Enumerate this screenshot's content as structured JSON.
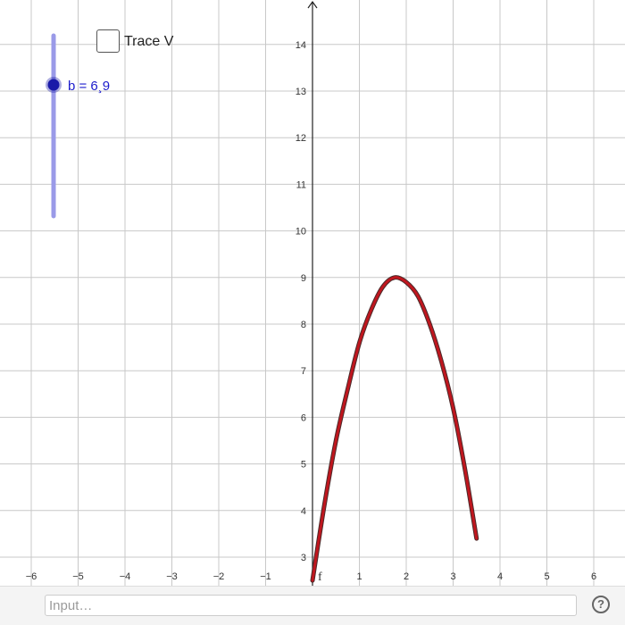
{
  "slider": {
    "label": "b = 6¸9",
    "value": 6.9,
    "track_color": "#9a9ae8",
    "knob_color": "#1a1aa8"
  },
  "checkbox": {
    "label": "Trace V",
    "checked": false
  },
  "input_bar": {
    "placeholder": "Input…",
    "help_label": "?"
  },
  "chart_data": {
    "type": "line",
    "x_range": [
      -6.7,
      6.7
    ],
    "y_range": [
      2.6,
      15
    ],
    "x_ticks": [
      -6,
      -5,
      -4,
      -3,
      -2,
      -1,
      1,
      2,
      3,
      4,
      5,
      6
    ],
    "y_ticks": [
      3,
      4,
      5,
      6,
      7,
      8,
      9,
      10,
      11,
      12,
      13,
      14
    ],
    "x_tick_labels": [
      "−6",
      "−5",
      "−4",
      "−3",
      "−2",
      "−1",
      "1",
      "2",
      "3",
      "4",
      "5",
      "6"
    ],
    "y_tick_labels": [
      "3",
      "4",
      "5",
      "6",
      "7",
      "8",
      "9",
      "10",
      "11",
      "12",
      "13",
      "14"
    ],
    "grid": true,
    "series": [
      {
        "name": "f",
        "color": "#c0161e",
        "x": [
          0,
          0.25,
          0.5,
          0.75,
          1,
          1.25,
          1.5,
          1.75,
          2,
          2.25,
          2.5,
          2.75,
          3,
          3.25,
          3.5
        ],
        "y": [
          2.5,
          4.1,
          5.5,
          6.6,
          7.6,
          8.3,
          8.8,
          9.0,
          8.9,
          8.6,
          8.0,
          7.2,
          6.2,
          4.9,
          3.4
        ]
      }
    ]
  }
}
